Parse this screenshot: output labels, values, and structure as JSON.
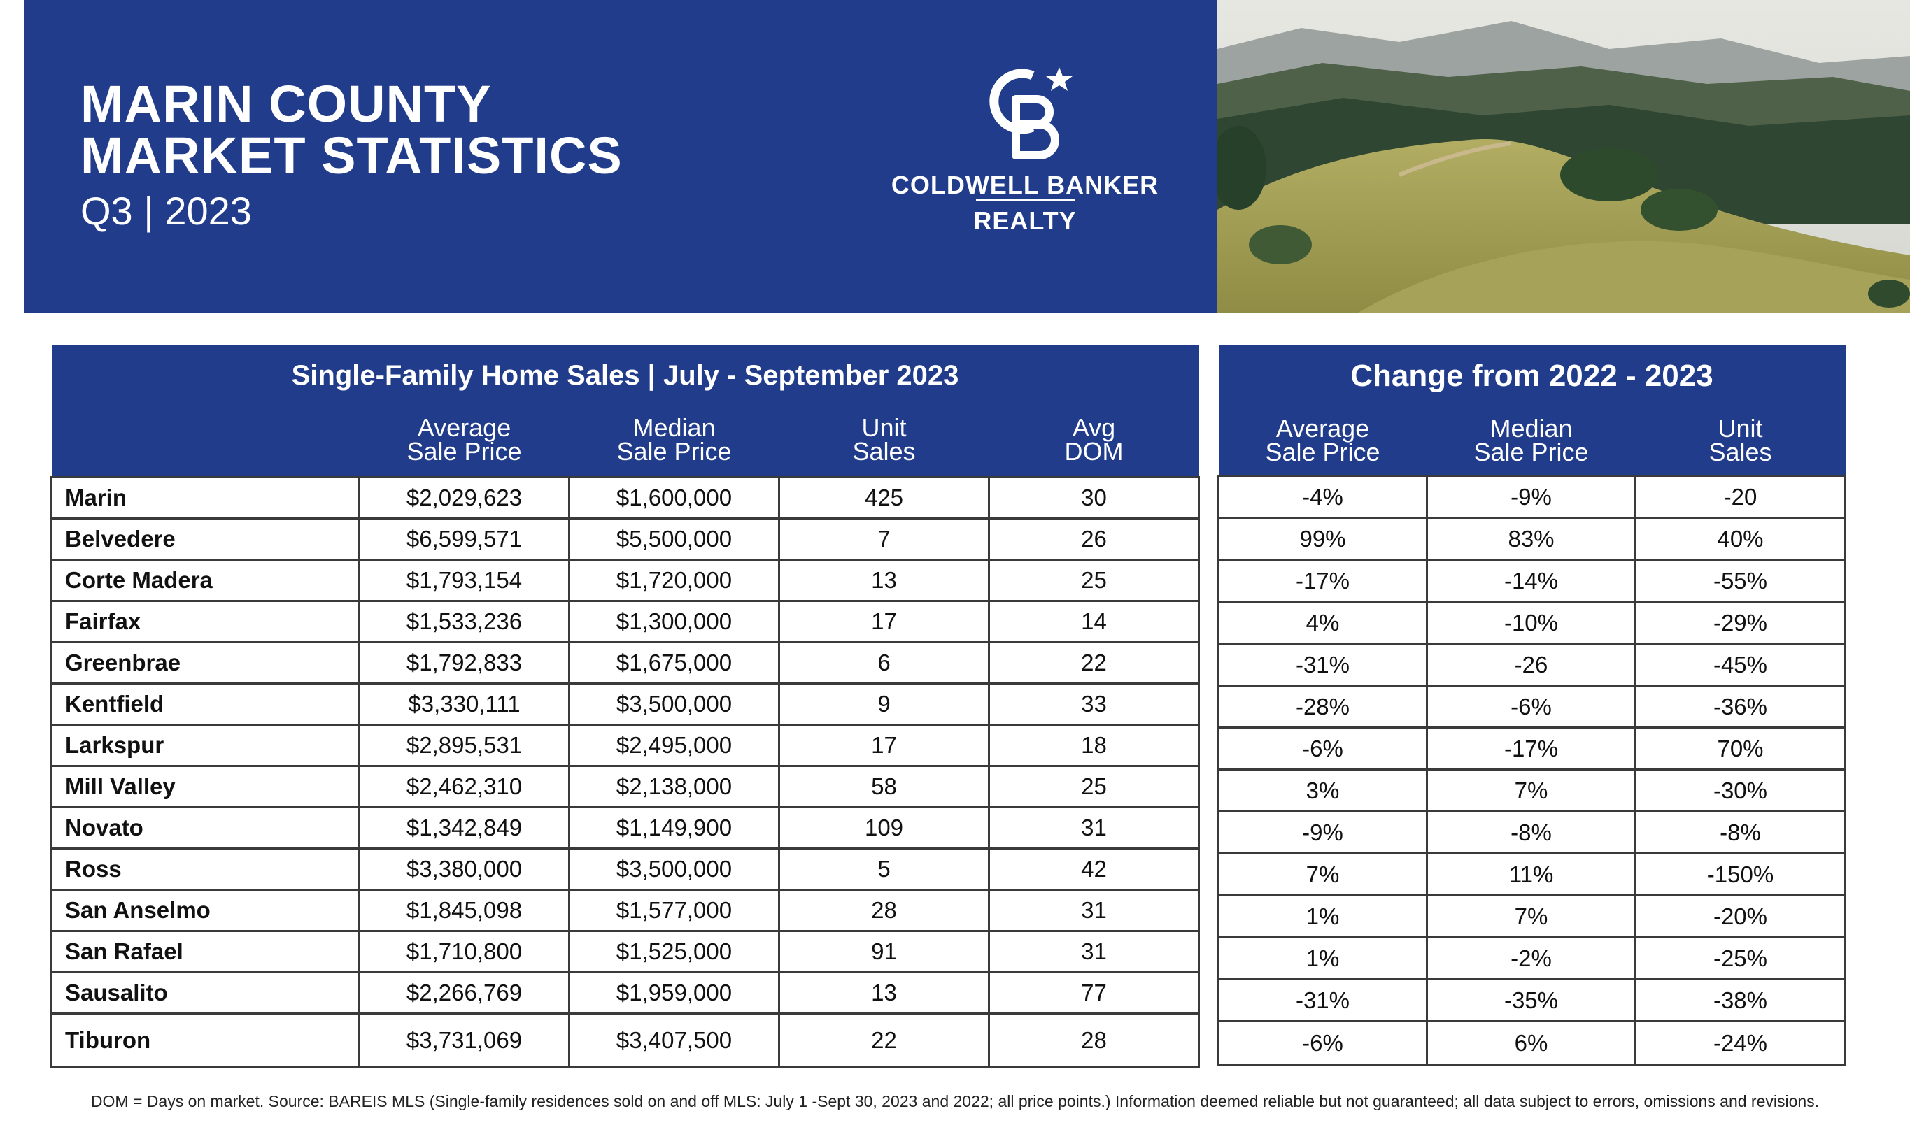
{
  "header": {
    "title_line1": "MARIN COUNTY",
    "title_line2": "MARKET STATISTICS",
    "subtitle": "Q3 | 2023",
    "brand_line1": "COLDWELL BANKER",
    "brand_line2": "REALTY",
    "logo_icon": "coldwell-banker-cb-star-logo",
    "accent_color": "#213c8b"
  },
  "sales_table": {
    "title": "Single-Family Home Sales | July - September 2023",
    "columns": [
      {
        "line1": "Average",
        "line2": "Sale Price"
      },
      {
        "line1": "Median",
        "line2": "Sale Price"
      },
      {
        "line1": "Unit",
        "line2": "Sales"
      },
      {
        "line1": "Avg",
        "line2": "DOM"
      }
    ],
    "rows": [
      {
        "area": "Marin",
        "avg": "$2,029,623",
        "median": "$1,600,000",
        "units": "425",
        "dom": "30"
      },
      {
        "area": "Belvedere",
        "avg": "$6,599,571",
        "median": "$5,500,000",
        "units": "7",
        "dom": "26"
      },
      {
        "area": "Corte Madera",
        "avg": "$1,793,154",
        "median": "$1,720,000",
        "units": "13",
        "dom": "25"
      },
      {
        "area": "Fairfax",
        "avg": "$1,533,236",
        "median": "$1,300,000",
        "units": "17",
        "dom": "14"
      },
      {
        "area": "Greenbrae",
        "avg": "$1,792,833",
        "median": "$1,675,000",
        "units": "6",
        "dom": "22"
      },
      {
        "area": "Kentfield",
        "avg": "$3,330,111",
        "median": "$3,500,000",
        "units": "9",
        "dom": "33"
      },
      {
        "area": "Larkspur",
        "avg": "$2,895,531",
        "median": "$2,495,000",
        "units": "17",
        "dom": "18"
      },
      {
        "area": "Mill Valley",
        "avg": "$2,462,310",
        "median": "$2,138,000",
        "units": "58",
        "dom": "25"
      },
      {
        "area": "Novato",
        "avg": "$1,342,849",
        "median": "$1,149,900",
        "units": "109",
        "dom": "31"
      },
      {
        "area": "Ross",
        "avg": "$3,380,000",
        "median": "$3,500,000",
        "units": "5",
        "dom": "42"
      },
      {
        "area": "San Anselmo",
        "avg": "$1,845,098",
        "median": "$1,577,000",
        "units": "28",
        "dom": "31"
      },
      {
        "area": "San Rafael",
        "avg": "$1,710,800",
        "median": "$1,525,000",
        "units": "91",
        "dom": "31"
      },
      {
        "area": "Sausalito",
        "avg": "$2,266,769",
        "median": "$1,959,000",
        "units": "13",
        "dom": "77"
      },
      {
        "area": "Tiburon",
        "avg": "$3,731,069",
        "median": "$3,407,500",
        "units": "22",
        "dom": "28"
      }
    ]
  },
  "change_table": {
    "title": "Change from 2022 - 2023",
    "columns": [
      {
        "line1": "Average",
        "line2": "Sale Price"
      },
      {
        "line1": "Median",
        "line2": "Sale Price"
      },
      {
        "line1": "Unit",
        "line2": "Sales"
      }
    ],
    "rows": [
      {
        "avg": "-4%",
        "median": "-9%",
        "units": "-20"
      },
      {
        "avg": "99%",
        "median": "83%",
        "units": "40%"
      },
      {
        "avg": "-17%",
        "median": "-14%",
        "units": "-55%"
      },
      {
        "avg": "4%",
        "median": "-10%",
        "units": "-29%"
      },
      {
        "avg": "-31%",
        "median": "-26",
        "units": "-45%"
      },
      {
        "avg": "-28%",
        "median": "-6%",
        "units": "-36%"
      },
      {
        "avg": "-6%",
        "median": "-17%",
        "units": "70%"
      },
      {
        "avg": "3%",
        "median": "7%",
        "units": "-30%"
      },
      {
        "avg": "-9%",
        "median": "-8%",
        "units": "-8%"
      },
      {
        "avg": "7%",
        "median": "11%",
        "units": "-150%"
      },
      {
        "avg": "1%",
        "median": "7%",
        "units": "-20%"
      },
      {
        "avg": "1%",
        "median": "-2%",
        "units": "-25%"
      },
      {
        "avg": "-31%",
        "median": "-35%",
        "units": "-38%"
      },
      {
        "avg": "-6%",
        "median": "6%",
        "units": "-24%"
      }
    ]
  },
  "footnote": "DOM = Days on market. Source: BAREIS MLS (Single-family residences sold on and off MLS: July 1 -Sept 30, 2023 and 2022; all price points.) Information deemed reliable but not guaranteed; all data subject to errors, omissions and revisions."
}
